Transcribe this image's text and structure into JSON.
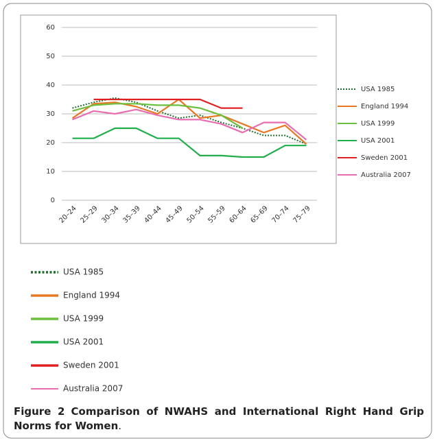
{
  "chart_data": {
    "type": "line",
    "categories": [
      "20–24",
      "25–29",
      "30–34",
      "35–39",
      "40–44",
      "45–49",
      "50–54",
      "55–59",
      "60–64",
      "65–69",
      "70–74",
      "75–79"
    ],
    "series": [
      {
        "name": "USA 1985",
        "color": "#1e6b2e",
        "dash": "dotted",
        "values": [
          32,
          34,
          35.5,
          34,
          31,
          28.5,
          29.5,
          27,
          25,
          22.5,
          22.5,
          19.5
        ]
      },
      {
        "name": "England 1994",
        "color": "#e87722",
        "values": [
          28.5,
          33.5,
          34,
          32.5,
          30,
          35,
          28.5,
          29.5,
          26.5,
          23.5,
          26,
          19.5
        ]
      },
      {
        "name": "USA 1999",
        "color": "#6abf3f",
        "values": [
          31,
          33,
          33.5,
          33.5,
          33,
          33,
          32,
          29.5,
          25,
          null,
          null,
          null
        ]
      },
      {
        "name": "USA 2001",
        "color": "#1fae4b",
        "values": [
          21.5,
          21.5,
          25,
          25,
          21.5,
          21.5,
          15.5,
          15.5,
          15,
          15,
          19,
          19
        ]
      },
      {
        "name": "Sweden 2001",
        "color": "#e02020",
        "values": [
          null,
          35,
          35,
          35,
          35,
          35,
          35,
          32,
          32,
          null,
          null,
          null
        ]
      },
      {
        "name": "Australia 2007",
        "color": "#e86db0",
        "values": [
          28,
          31,
          30,
          31.5,
          29.5,
          28,
          28,
          26.5,
          23.5,
          27,
          27,
          21
        ]
      }
    ],
    "ylim": [
      0,
      60
    ],
    "yticks": [
      0,
      10,
      20,
      30,
      40,
      50,
      60
    ],
    "grid": true,
    "legend": "right"
  },
  "caption": {
    "label": "Figure 2",
    "text": "Comparison of NWAHS and International Right Hand Grip Norms for Women",
    "end": "."
  }
}
